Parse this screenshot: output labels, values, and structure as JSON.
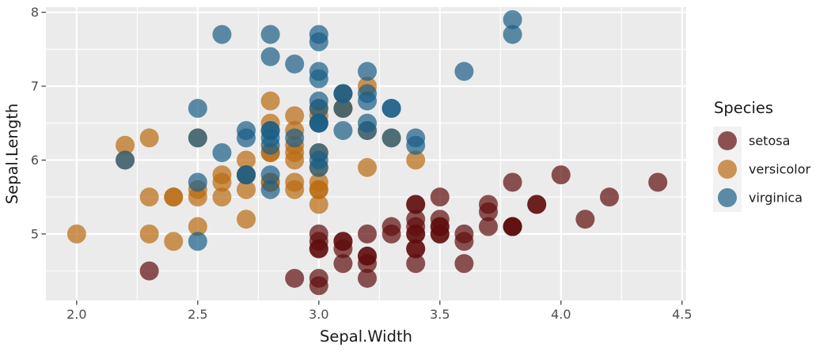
{
  "figure": {
    "background": "#FFFFFF",
    "panel_background": "#EBEBEB",
    "grid_color": "#FFFFFF",
    "tick_mark_color": "#333333",
    "tick_label_color": "#4D4D4D",
    "axis_title_color": "#1A1A1A",
    "legend_key_background": "#F2F2F2",
    "legend_text_color": "#1A1A1A"
  },
  "chart_data": {
    "type": "scatter",
    "title": "",
    "xlabel": "Sepal.Width",
    "ylabel": "Sepal.Length",
    "xlim": [
      1.873,
      4.517
    ],
    "ylim": [
      4.1,
      8.07
    ],
    "x_ticks": [
      2.0,
      2.5,
      3.0,
      3.5,
      4.0,
      4.5
    ],
    "x_tick_labels": [
      "2.0",
      "2.5",
      "3.0",
      "3.5",
      "4.0",
      "4.5"
    ],
    "y_ticks": [
      5,
      6,
      7,
      8
    ],
    "y_tick_labels": [
      "5",
      "6",
      "7",
      "8"
    ],
    "x_minor": [
      2.25,
      2.75,
      3.25,
      3.75,
      4.25
    ],
    "y_minor": [
      4.5,
      5.5,
      6.5,
      7.5
    ],
    "grid": true,
    "point_alpha": 0.7,
    "point_radius_px": 12,
    "legend": {
      "title": "Species",
      "position": "right"
    },
    "series": [
      {
        "name": "setosa",
        "color": "#600D0D",
        "points": [
          [
            3.5,
            5.1
          ],
          [
            3.0,
            4.9
          ],
          [
            3.2,
            4.7
          ],
          [
            3.1,
            4.6
          ],
          [
            3.6,
            5.0
          ],
          [
            3.9,
            5.4
          ],
          [
            3.4,
            4.6
          ],
          [
            3.4,
            5.0
          ],
          [
            2.9,
            4.4
          ],
          [
            3.1,
            4.9
          ],
          [
            3.7,
            5.4
          ],
          [
            3.4,
            4.8
          ],
          [
            3.0,
            4.8
          ],
          [
            3.0,
            4.3
          ],
          [
            4.0,
            5.8
          ],
          [
            4.4,
            5.7
          ],
          [
            3.9,
            5.4
          ],
          [
            3.5,
            5.1
          ],
          [
            3.8,
            5.7
          ],
          [
            3.8,
            5.1
          ],
          [
            3.4,
            5.4
          ],
          [
            3.7,
            5.1
          ],
          [
            3.6,
            4.6
          ],
          [
            3.3,
            5.1
          ],
          [
            3.4,
            4.8
          ],
          [
            3.0,
            5.0
          ],
          [
            3.4,
            5.0
          ],
          [
            3.5,
            5.2
          ],
          [
            3.4,
            5.2
          ],
          [
            3.2,
            4.7
          ],
          [
            3.1,
            4.8
          ],
          [
            3.4,
            5.4
          ],
          [
            4.1,
            5.2
          ],
          [
            4.2,
            5.5
          ],
          [
            3.1,
            4.9
          ],
          [
            3.2,
            5.0
          ],
          [
            3.5,
            5.5
          ],
          [
            3.6,
            4.9
          ],
          [
            3.0,
            4.4
          ],
          [
            3.4,
            5.1
          ],
          [
            3.5,
            5.0
          ],
          [
            2.3,
            4.5
          ],
          [
            3.2,
            4.4
          ],
          [
            3.5,
            5.0
          ],
          [
            3.8,
            5.1
          ],
          [
            3.0,
            4.8
          ],
          [
            3.8,
            5.1
          ],
          [
            3.2,
            4.6
          ],
          [
            3.7,
            5.3
          ],
          [
            3.3,
            5.0
          ]
        ]
      },
      {
        "name": "versicolor",
        "color": "#B96B10",
        "points": [
          [
            3.2,
            7.0
          ],
          [
            3.2,
            6.4
          ],
          [
            3.1,
            6.9
          ],
          [
            2.3,
            5.5
          ],
          [
            2.8,
            6.5
          ],
          [
            2.8,
            5.7
          ],
          [
            3.3,
            6.3
          ],
          [
            2.4,
            4.9
          ],
          [
            2.9,
            6.6
          ],
          [
            2.7,
            5.2
          ],
          [
            2.0,
            5.0
          ],
          [
            3.0,
            5.9
          ],
          [
            2.2,
            6.0
          ],
          [
            2.9,
            6.1
          ],
          [
            2.9,
            5.6
          ],
          [
            3.1,
            6.7
          ],
          [
            3.0,
            5.6
          ],
          [
            2.7,
            5.8
          ],
          [
            2.2,
            6.2
          ],
          [
            2.5,
            5.6
          ],
          [
            3.2,
            5.9
          ],
          [
            2.8,
            6.1
          ],
          [
            2.5,
            6.3
          ],
          [
            2.8,
            6.1
          ],
          [
            2.9,
            6.4
          ],
          [
            3.0,
            6.6
          ],
          [
            2.8,
            6.8
          ],
          [
            3.0,
            6.7
          ],
          [
            2.9,
            6.0
          ],
          [
            2.6,
            5.7
          ],
          [
            2.4,
            5.5
          ],
          [
            2.4,
            5.5
          ],
          [
            2.7,
            5.8
          ],
          [
            2.7,
            6.0
          ],
          [
            3.0,
            5.4
          ],
          [
            3.4,
            6.0
          ],
          [
            3.1,
            6.7
          ],
          [
            2.3,
            6.3
          ],
          [
            3.0,
            5.6
          ],
          [
            2.5,
            5.5
          ],
          [
            2.6,
            5.5
          ],
          [
            3.0,
            6.1
          ],
          [
            2.6,
            5.8
          ],
          [
            2.3,
            5.0
          ],
          [
            2.7,
            5.6
          ],
          [
            3.0,
            5.7
          ],
          [
            2.9,
            5.7
          ],
          [
            2.9,
            6.2
          ],
          [
            2.5,
            5.1
          ],
          [
            2.8,
            5.7
          ]
        ]
      },
      {
        "name": "virginica",
        "color": "#1A5E86",
        "points": [
          [
            3.3,
            6.3
          ],
          [
            2.7,
            5.8
          ],
          [
            3.0,
            7.1
          ],
          [
            2.9,
            6.3
          ],
          [
            3.0,
            6.5
          ],
          [
            3.0,
            7.6
          ],
          [
            2.5,
            4.9
          ],
          [
            2.9,
            7.3
          ],
          [
            2.5,
            6.7
          ],
          [
            3.6,
            7.2
          ],
          [
            3.2,
            6.5
          ],
          [
            2.7,
            6.4
          ],
          [
            3.0,
            6.8
          ],
          [
            2.5,
            5.7
          ],
          [
            2.8,
            5.8
          ],
          [
            3.2,
            6.4
          ],
          [
            3.0,
            6.5
          ],
          [
            3.8,
            7.7
          ],
          [
            2.6,
            7.7
          ],
          [
            2.2,
            6.0
          ],
          [
            3.2,
            6.9
          ],
          [
            2.8,
            5.6
          ],
          [
            2.8,
            7.7
          ],
          [
            2.7,
            6.3
          ],
          [
            3.3,
            6.7
          ],
          [
            3.2,
            7.2
          ],
          [
            2.8,
            6.2
          ],
          [
            3.0,
            6.1
          ],
          [
            2.8,
            6.4
          ],
          [
            3.0,
            7.2
          ],
          [
            2.8,
            7.4
          ],
          [
            3.8,
            7.9
          ],
          [
            2.8,
            6.4
          ],
          [
            2.8,
            6.3
          ],
          [
            2.6,
            6.1
          ],
          [
            3.0,
            7.7
          ],
          [
            3.4,
            6.3
          ],
          [
            3.1,
            6.4
          ],
          [
            3.0,
            6.0
          ],
          [
            3.1,
            6.9
          ],
          [
            3.1,
            6.7
          ],
          [
            3.1,
            6.9
          ],
          [
            2.7,
            5.8
          ],
          [
            3.2,
            6.8
          ],
          [
            3.3,
            6.7
          ],
          [
            3.0,
            6.7
          ],
          [
            2.5,
            6.3
          ],
          [
            3.0,
            6.5
          ],
          [
            3.4,
            6.2
          ],
          [
            3.0,
            5.9
          ]
        ]
      }
    ]
  }
}
